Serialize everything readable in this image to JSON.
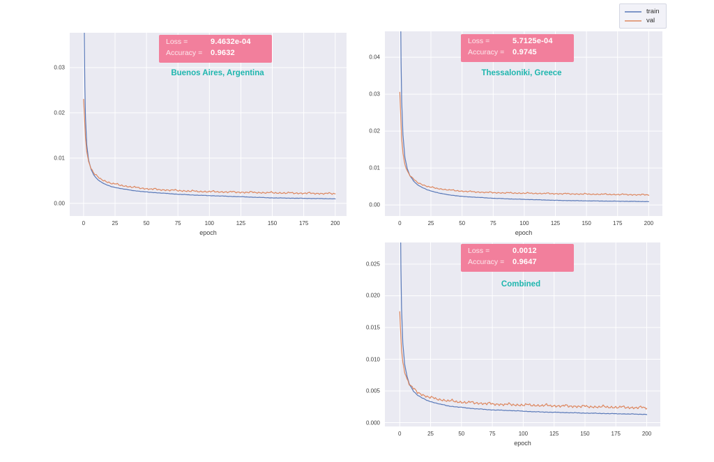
{
  "page": {
    "background": "#ffffff"
  },
  "legend": {
    "position": "top-right",
    "items": [
      {
        "label": "train",
        "color": "#5878b8"
      },
      {
        "label": "val",
        "color": "#dd875f"
      }
    ]
  },
  "chart_data": [
    {
      "type": "line",
      "title": "Buenos Aires, Argentina",
      "title_color": "#1fb6ae",
      "loss_label": "Loss =",
      "loss_value": "9.4632e-04",
      "accuracy_label": "Accuracy =",
      "accuracy_value": "0.9632",
      "annotation_bg": "#f27f9c",
      "xlabel": "epoch",
      "xlim": [
        -11,
        209
      ],
      "ylim": [
        -0.0028,
        0.0377
      ],
      "xticks": [
        0,
        25,
        50,
        75,
        100,
        125,
        150,
        175,
        200
      ],
      "yticks": [
        0,
        0.01,
        0.02,
        0.03
      ],
      "ytick_labels": [
        "0.00",
        "0.01",
        "0.02",
        "0.03"
      ],
      "grid": true,
      "series": [
        {
          "name": "train",
          "color": "#5878b8",
          "noise_amp": 4e-05,
          "x": [
            0,
            0.7,
            1.5,
            2.5,
            4,
            6,
            8,
            11,
            14,
            18,
            22,
            27,
            33,
            40,
            50,
            60,
            75,
            90,
            110,
            130,
            150,
            175,
            200
          ],
          "y": [
            0.06,
            0.03,
            0.019,
            0.013,
            0.0095,
            0.0075,
            0.0063,
            0.0053,
            0.0047,
            0.0041,
            0.0037,
            0.0034,
            0.0031,
            0.0028,
            0.0025,
            0.0023,
            0.002,
            0.0018,
            0.0016,
            0.0014,
            0.0012,
            0.0011,
            0.001
          ]
        },
        {
          "name": "val",
          "color": "#dd875f",
          "noise_amp": 0.0002,
          "x": [
            0,
            0.7,
            1.5,
            2.5,
            4,
            6,
            8,
            11,
            14,
            18,
            22,
            27,
            33,
            40,
            50,
            60,
            75,
            90,
            110,
            130,
            150,
            175,
            200
          ],
          "y": [
            0.023,
            0.019,
            0.0145,
            0.0115,
            0.0092,
            0.0077,
            0.0067,
            0.0058,
            0.0053,
            0.0048,
            0.0044,
            0.0041,
            0.0038,
            0.0035,
            0.0032,
            0.003,
            0.0028,
            0.0026,
            0.0025,
            0.0024,
            0.0023,
            0.0022,
            0.0021
          ]
        }
      ]
    },
    {
      "type": "line",
      "title": "Thessaloniki, Greece",
      "title_color": "#1fb6ae",
      "loss_label": "Loss =",
      "loss_value": "5.7125e-04",
      "accuracy_label": "Accuracy =",
      "accuracy_value": "0.9745",
      "annotation_bg": "#f27f9c",
      "xlabel": "epoch",
      "xlim": [
        -12,
        211
      ],
      "ylim": [
        -0.003,
        0.047
      ],
      "xticks": [
        0,
        25,
        50,
        75,
        100,
        125,
        150,
        175,
        200
      ],
      "yticks": [
        0,
        0.01,
        0.02,
        0.03,
        0.04
      ],
      "ytick_labels": [
        "0.00",
        "0.01",
        "0.02",
        "0.03",
        "0.04"
      ],
      "grid": true,
      "series": [
        {
          "name": "train",
          "color": "#5878b8",
          "noise_amp": 4e-05,
          "x": [
            0,
            0.7,
            1.5,
            2.5,
            4,
            6,
            8,
            11,
            14,
            18,
            22,
            27,
            33,
            40,
            50,
            60,
            75,
            90,
            110,
            130,
            150,
            175,
            200
          ],
          "y": [
            0.09,
            0.045,
            0.028,
            0.019,
            0.013,
            0.0098,
            0.008,
            0.0065,
            0.0055,
            0.0047,
            0.0041,
            0.0036,
            0.0031,
            0.0027,
            0.0023,
            0.0021,
            0.0018,
            0.0016,
            0.0014,
            0.0012,
            0.0011,
            0.001,
            0.0009
          ]
        },
        {
          "name": "val",
          "color": "#dd875f",
          "noise_amp": 0.00018,
          "x": [
            0,
            0.7,
            1.5,
            2.5,
            4,
            6,
            8,
            11,
            14,
            18,
            22,
            27,
            33,
            40,
            50,
            60,
            75,
            90,
            110,
            130,
            150,
            175,
            200
          ],
          "y": [
            0.0305,
            0.024,
            0.018,
            0.014,
            0.011,
            0.0092,
            0.008,
            0.0069,
            0.0061,
            0.0055,
            0.005,
            0.0046,
            0.0043,
            0.004,
            0.0037,
            0.0035,
            0.0033,
            0.0032,
            0.0031,
            0.003,
            0.0029,
            0.0028,
            0.0027
          ]
        }
      ]
    },
    {
      "type": "line",
      "title": "Combined",
      "title_color": "#1fb6ae",
      "loss_label": "Loss =",
      "loss_value": "0.0012",
      "accuracy_label": "Accuracy =",
      "accuracy_value": "0.9647",
      "annotation_bg": "#f27f9c",
      "xlabel": "epoch",
      "xlim": [
        -12,
        211
      ],
      "ylim": [
        -0.0006,
        0.0284
      ],
      "xticks": [
        0,
        25,
        50,
        75,
        100,
        125,
        150,
        175,
        200
      ],
      "yticks": [
        0,
        0.005,
        0.01,
        0.015,
        0.02,
        0.025
      ],
      "ytick_labels": [
        "0.000",
        "0.005",
        "0.010",
        "0.015",
        "0.020",
        "0.025"
      ],
      "grid": true,
      "series": [
        {
          "name": "train",
          "color": "#5878b8",
          "noise_amp": 4e-05,
          "x": [
            0,
            0.7,
            1.5,
            2.5,
            4,
            6,
            8,
            11,
            14,
            18,
            22,
            27,
            33,
            40,
            50,
            60,
            75,
            90,
            110,
            130,
            150,
            175,
            200
          ],
          "y": [
            0.055,
            0.028,
            0.018,
            0.0125,
            0.0092,
            0.0072,
            0.006,
            0.005,
            0.0044,
            0.0039,
            0.0035,
            0.0032,
            0.0029,
            0.0026,
            0.0024,
            0.0022,
            0.002,
            0.0019,
            0.0017,
            0.0016,
            0.0015,
            0.0014,
            0.0013
          ]
        },
        {
          "name": "val",
          "color": "#dd875f",
          "noise_amp": 0.00022,
          "x": [
            0,
            0.7,
            1.5,
            2.5,
            4,
            6,
            8,
            11,
            14,
            18,
            22,
            27,
            33,
            40,
            50,
            60,
            75,
            90,
            110,
            130,
            150,
            175,
            200
          ],
          "y": [
            0.0175,
            0.0145,
            0.0115,
            0.0095,
            0.008,
            0.0068,
            0.006,
            0.0053,
            0.0048,
            0.0044,
            0.0041,
            0.0038,
            0.0036,
            0.0034,
            0.0032,
            0.0031,
            0.0029,
            0.0028,
            0.0027,
            0.0026,
            0.0025,
            0.0024,
            0.0023
          ]
        }
      ]
    }
  ]
}
